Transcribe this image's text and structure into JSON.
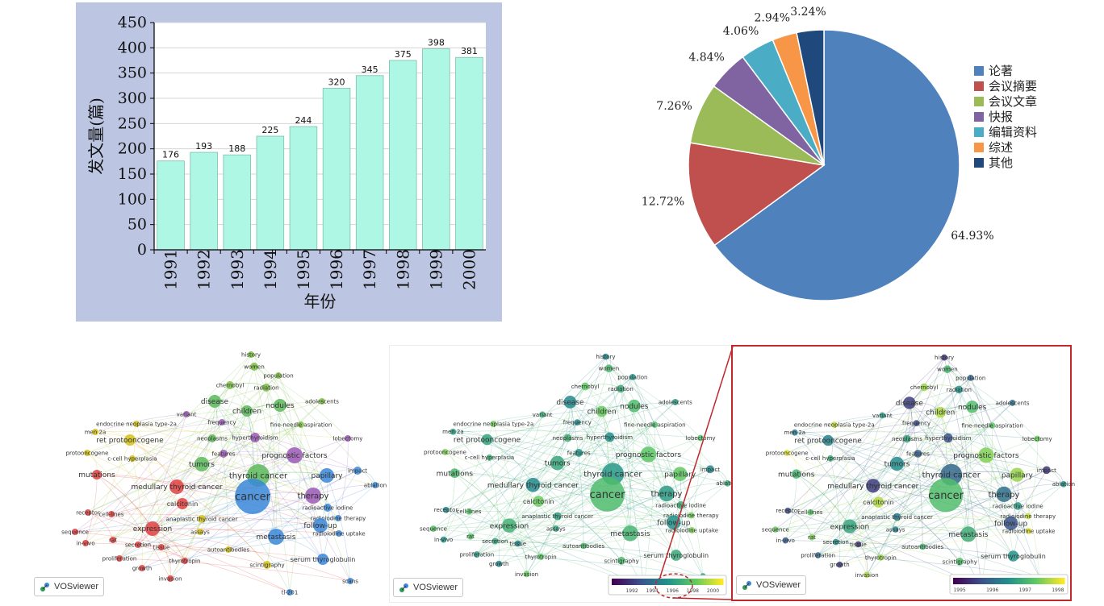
{
  "chart_data": [
    {
      "type": "bar",
      "categories": [
        "1991",
        "1992",
        "1993",
        "1994",
        "1995",
        "1996",
        "1997",
        "1998",
        "1999",
        "2000"
      ],
      "values": [
        176,
        193,
        188,
        225,
        244,
        320,
        345,
        375,
        398,
        381
      ],
      "data_labels": [
        "176",
        "193",
        "188",
        "225",
        "244",
        "320",
        "345",
        "375",
        "398",
        "381"
      ],
      "xlabel": "年份",
      "ylabel": "发文量(篇)",
      "ylim": [
        0,
        450
      ],
      "yticks": [
        0,
        50,
        100,
        150,
        200,
        250,
        300,
        350,
        400,
        450
      ],
      "grid": true,
      "colors": {
        "bar": "#aef7e4",
        "bar_edge": "#7fbfae",
        "background": "#bcc6e2",
        "plot": "#ffffff"
      }
    },
    {
      "type": "pie",
      "labels": [
        "论著",
        "会议摘要",
        "会议文章",
        "快报",
        "编辑资料",
        "综述",
        "其他"
      ],
      "values": [
        64.93,
        12.72,
        7.26,
        4.84,
        4.06,
        2.94,
        3.24
      ],
      "value_labels": [
        "64.93%",
        "12.72%",
        "7.26%",
        "4.84%",
        "4.06%",
        "2.94%",
        "3.24%"
      ],
      "colors": [
        "#4f81bd",
        "#c0504d",
        "#9bbb59",
        "#8064a2",
        "#4bacc6",
        "#f79646",
        "#1f497d"
      ],
      "legend_position": "right"
    }
  ],
  "networks": [
    {
      "id": "cluster",
      "brand": "VOSviewer",
      "terms": [
        {
          "label": "history",
          "c": "#7bc043"
        },
        {
          "label": "women",
          "c": "#7bc043"
        },
        {
          "label": "population",
          "c": "#7bc043"
        },
        {
          "label": "chernobyl",
          "c": "#7bc043"
        },
        {
          "label": "radiation",
          "c": "#7bc043"
        },
        {
          "label": "disease",
          "c": "#5cb85c"
        },
        {
          "label": "nodules",
          "c": "#5cb85c"
        },
        {
          "label": "adolescents",
          "c": "#7bc043"
        },
        {
          "label": "children",
          "c": "#5cb85c"
        },
        {
          "label": "variant",
          "c": "#9b59b6"
        },
        {
          "label": "frequency",
          "c": "#9b59b6"
        },
        {
          "label": "fine-needle aspiration",
          "c": "#7bc043"
        },
        {
          "label": "men 2a",
          "c": "#d4c21a"
        },
        {
          "label": "endocrine neoplasia type-2a",
          "c": "#d4c21a"
        },
        {
          "label": "neoplasms",
          "c": "#5cb85c"
        },
        {
          "label": "hyperthyroidism",
          "c": "#9b59b6"
        },
        {
          "label": "lobectomy",
          "c": "#9b59b6"
        },
        {
          "label": "ret protooncogene",
          "c": "#d4c21a"
        },
        {
          "label": "protooncogene",
          "c": "#d4c21a"
        },
        {
          "label": "c-cell hyperplasia",
          "c": "#d4c21a"
        },
        {
          "label": "features",
          "c": "#9b59b6"
        },
        {
          "label": "prognostic factors",
          "c": "#9b59b6"
        },
        {
          "label": "tumors",
          "c": "#5cb85c"
        },
        {
          "label": "impact",
          "c": "#3a87d8"
        },
        {
          "label": "mutations",
          "c": "#e04040"
        },
        {
          "label": "thyroid cancer",
          "c": "#5cb85c"
        },
        {
          "label": "papillary",
          "c": "#3a87d8"
        },
        {
          "label": "ablation",
          "c": "#3a87d8"
        },
        {
          "label": "medullary thyroid cancer",
          "c": "#e04040"
        },
        {
          "label": "cancer",
          "c": "#3a87d8"
        },
        {
          "label": "therapy",
          "c": "#9b59b6"
        },
        {
          "label": "calcitonin",
          "c": "#e04040"
        },
        {
          "label": "radioactive iodine",
          "c": "#3a87d8"
        },
        {
          "label": "receptor",
          "c": "#e04040"
        },
        {
          "label": "cell-lines",
          "c": "#e04040"
        },
        {
          "label": "anaplastic thyroid cancer",
          "c": "#d4c21a"
        },
        {
          "label": "radioiodine therapy",
          "c": "#3a87d8"
        },
        {
          "label": "expression",
          "c": "#e04040"
        },
        {
          "label": "follow-up",
          "c": "#3a87d8"
        },
        {
          "label": "sequence",
          "c": "#e04040"
        },
        {
          "label": "assays",
          "c": "#d4c21a"
        },
        {
          "label": "radioiodine uptake",
          "c": "#3a87d8"
        },
        {
          "label": "metastasis",
          "c": "#3a87d8"
        },
        {
          "label": "in-vivo",
          "c": "#e04040"
        },
        {
          "label": "rat",
          "c": "#e04040"
        },
        {
          "label": "secretion",
          "c": "#e04040"
        },
        {
          "label": "tissue",
          "c": "#e04040"
        },
        {
          "label": "autoantibodies",
          "c": "#d4c21a"
        },
        {
          "label": "proliferation",
          "c": "#e04040"
        },
        {
          "label": "thyrotropin",
          "c": "#e04040"
        },
        {
          "label": "serum thyroglobulin",
          "c": "#3a87d8"
        },
        {
          "label": "growth",
          "c": "#e04040"
        },
        {
          "label": "scintigraphy",
          "c": "#d4c21a"
        },
        {
          "label": "scans",
          "c": "#3a87d8"
        },
        {
          "label": "invasion",
          "c": "#e04040"
        },
        {
          "label": "tl-201",
          "c": "#3a87d8"
        }
      ]
    },
    {
      "id": "overlay-a",
      "brand": "VOSviewer",
      "scale_ticks": [
        "1992",
        "1994",
        "1996",
        "1998",
        "2000"
      ]
    },
    {
      "id": "overlay-b",
      "brand": "VOSviewer",
      "scale_ticks": [
        "1995",
        "1996",
        "1997",
        "1998"
      ]
    }
  ]
}
